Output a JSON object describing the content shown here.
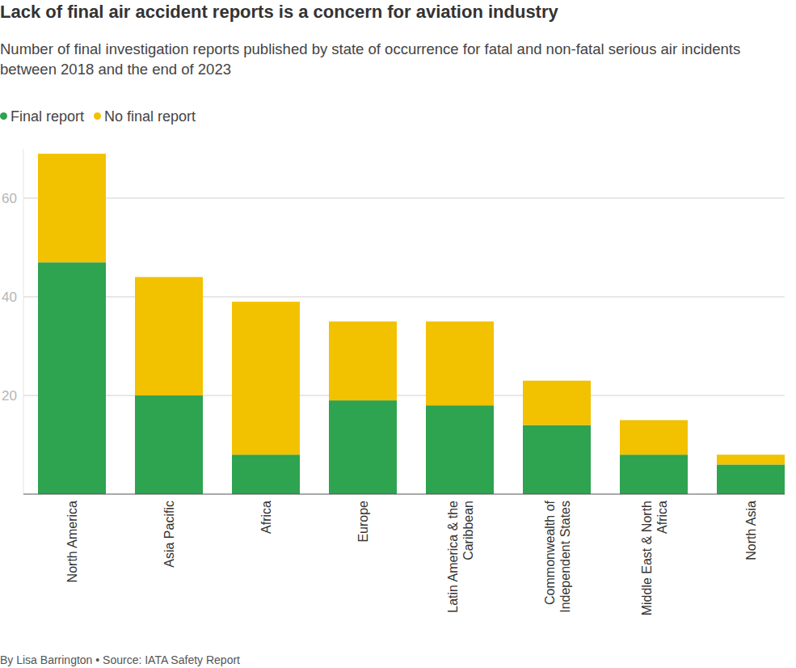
{
  "chart_data": {
    "type": "bar",
    "title": "Lack of final air accident reports is a concern for aviation industry",
    "subtitle": "Number of final investigation reports published by state of occurrence for fatal and non-fatal serious air incidents between 2018 and the end of 2023",
    "source": "By Lisa Barrington • Source: IATA Safety Report",
    "categories": [
      "North America",
      "Asia Pacific",
      "Africa",
      "Europe",
      "Latin America & the Caribbean",
      "Commonwealth of Independent States",
      "Middle East & North Africa",
      "North Asia"
    ],
    "series": [
      {
        "name": "Final report",
        "color": "#2ea350",
        "values": [
          47,
          20,
          8,
          19,
          18,
          14,
          8,
          6
        ]
      },
      {
        "name": "No final report",
        "color": "#f2c100",
        "values": [
          22,
          24,
          31,
          16,
          17,
          9,
          7,
          2
        ]
      }
    ],
    "stacked": true,
    "ylim": [
      0,
      70
    ],
    "yticks": [
      20,
      40,
      60
    ],
    "grid": true,
    "legend": "top-left"
  }
}
